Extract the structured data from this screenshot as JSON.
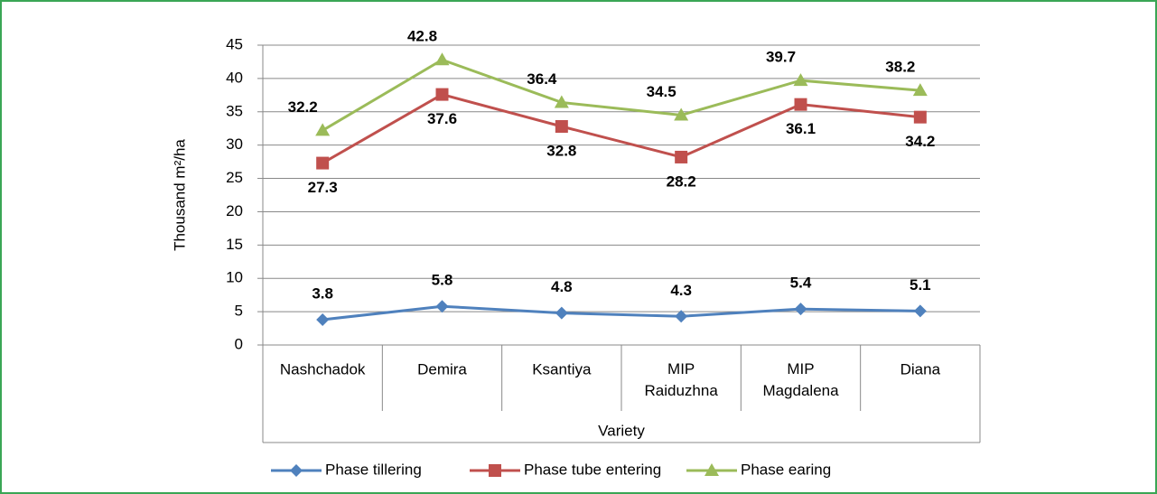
{
  "chart_data": {
    "type": "line",
    "y_label": "Thousand m²/ha",
    "x_label": "Variety",
    "categories": [
      "Nashchadok",
      "Demira",
      "Ksantiya",
      "MIP Raiduzhna",
      "MIP Magdalena",
      "Diana"
    ],
    "series": [
      {
        "name": "Phase tillering",
        "color": "#4f81bd",
        "marker": "diamond",
        "values": [
          3.8,
          5.8,
          4.8,
          4.3,
          5.4,
          5.1
        ]
      },
      {
        "name": "Phase tube entering",
        "color": "#c0504d",
        "marker": "square",
        "values": [
          27.3,
          37.6,
          32.8,
          28.2,
          36.1,
          34.2
        ]
      },
      {
        "name": "Phase earing",
        "color": "#9bbb59",
        "marker": "triangle",
        "values": [
          32.2,
          42.8,
          36.4,
          34.5,
          39.7,
          38.2
        ]
      }
    ],
    "ylim": [
      0,
      45
    ],
    "yticks": [
      0,
      5,
      10,
      15,
      20,
      25,
      30,
      35,
      40,
      45
    ],
    "grid": true,
    "legend": "bottom"
  }
}
